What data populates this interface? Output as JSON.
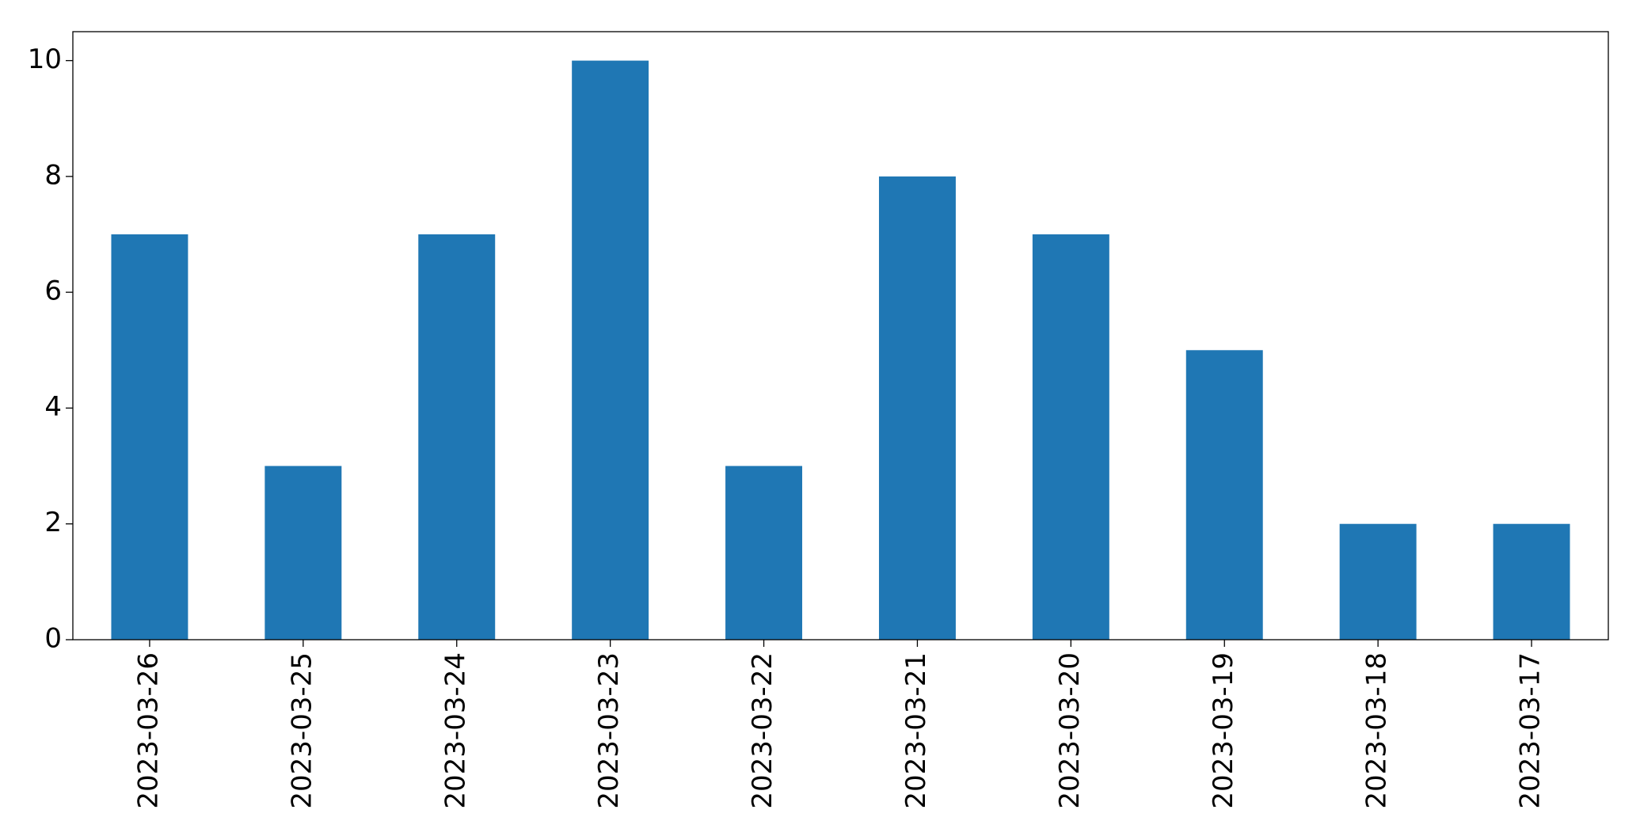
{
  "chart_data": {
    "type": "bar",
    "categories": [
      "2023-03-26",
      "2023-03-25",
      "2023-03-24",
      "2023-03-23",
      "2023-03-22",
      "2023-03-21",
      "2023-03-20",
      "2023-03-19",
      "2023-03-18",
      "2023-03-17"
    ],
    "values": [
      7,
      3,
      7,
      10,
      3,
      8,
      7,
      5,
      2,
      2
    ],
    "color": "#1f77b4",
    "ylim": [
      0,
      10.5
    ],
    "yticks": [
      0,
      2,
      4,
      6,
      8,
      10
    ],
    "grid": false
  }
}
